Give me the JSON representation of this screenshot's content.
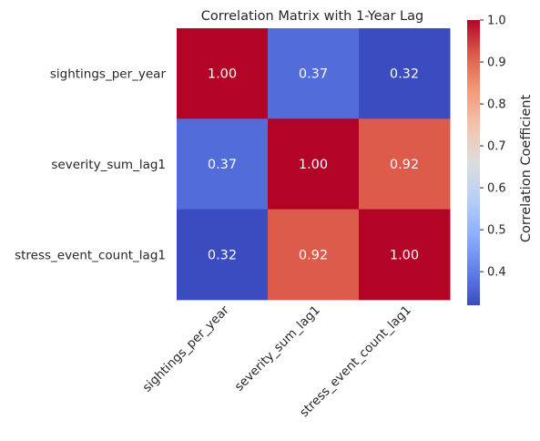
{
  "chart_data": {
    "type": "heatmap",
    "title": "Correlation Matrix with 1-Year Lag",
    "rows": [
      "sightings_per_year",
      "severity_sum_lag1",
      "stress_event_count_lag1"
    ],
    "columns": [
      "sightings_per_year",
      "severity_sum_lag1",
      "stress_event_count_lag1"
    ],
    "values": [
      [
        1.0,
        0.37,
        0.32
      ],
      [
        0.37,
        1.0,
        0.92
      ],
      [
        0.32,
        0.92,
        1.0
      ]
    ],
    "cell_labels": [
      [
        "1.00",
        "0.37",
        "0.32"
      ],
      [
        "0.37",
        "1.00",
        "0.92"
      ],
      [
        "0.32",
        "0.92",
        "1.00"
      ]
    ],
    "colormap": "coolwarm",
    "vmin": 0.32,
    "vmax": 1.0,
    "colorbar": {
      "label": "Correlation Coefficient",
      "ticks": [
        "0.4",
        "0.5",
        "0.6",
        "0.7",
        "0.8",
        "0.9",
        "1.0"
      ]
    },
    "grid": false,
    "legend": "colorbar-right"
  }
}
